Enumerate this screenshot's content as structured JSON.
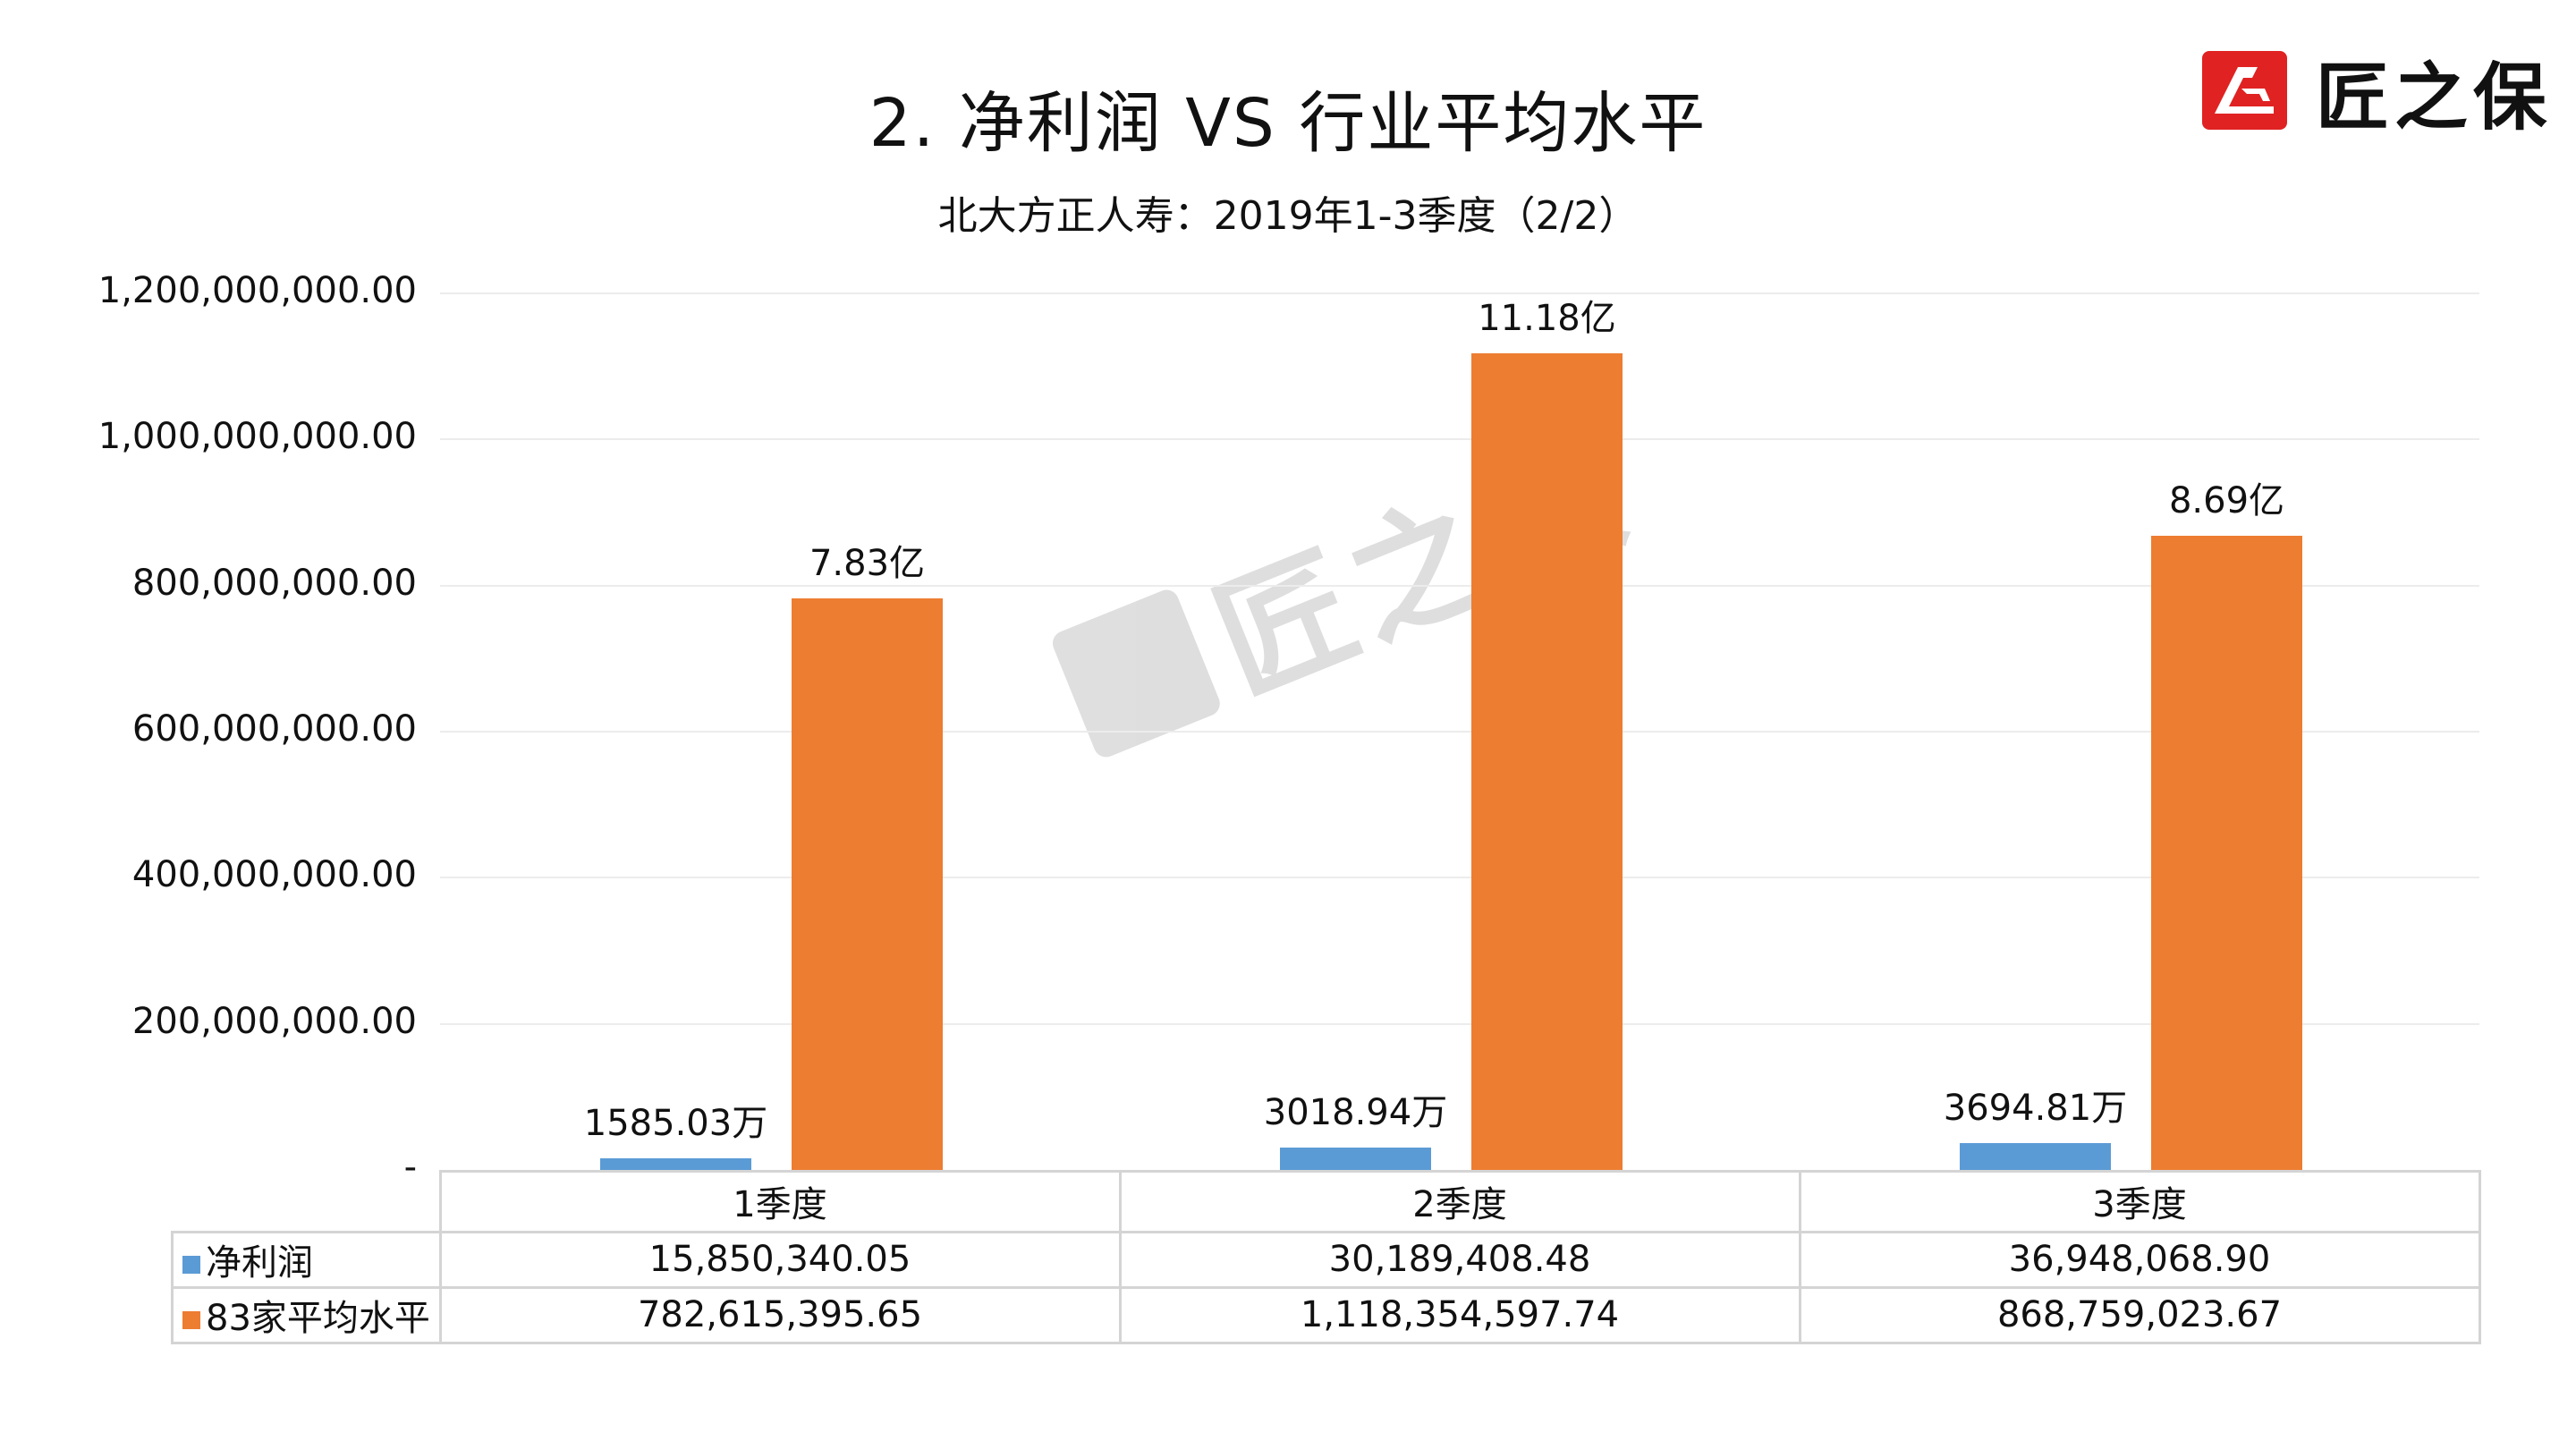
{
  "header": {
    "title": "2. 净利润  VS  行业平均水平",
    "subtitle": "北大方正人寿：2019年1-3季度（2/2）"
  },
  "logo": {
    "icon": "jiangzhibao-logo-icon",
    "text": "匠之保",
    "color": "#e02222"
  },
  "watermark": {
    "icon": "jiangzhibao-logo-icon",
    "text": "匠之保"
  },
  "colors": {
    "net_profit": "#5b9bd5",
    "industry_avg": "#ed7d31"
  },
  "y_axis": {
    "ticks": [
      "1,200,000,000.00",
      "1,000,000,000.00",
      "800,000,000.00",
      "600,000,000.00",
      "400,000,000.00",
      "200,000,000.00",
      "-"
    ]
  },
  "data_labels": {
    "net_profit": [
      "1585.03万",
      "3018.94万",
      "3694.81万"
    ],
    "industry_avg": [
      "7.83亿",
      "11.18亿",
      "8.69亿"
    ]
  },
  "table": {
    "columns": [
      "1季度",
      "2季度",
      "3季度"
    ],
    "rows": [
      {
        "label": "净利润",
        "values": [
          "15,850,340.05",
          "30,189,408.48",
          "36,948,068.90"
        ]
      },
      {
        "label": "83家平均水平",
        "values": [
          "782,615,395.65",
          "1,118,354,597.74",
          "868,759,023.67"
        ]
      }
    ]
  },
  "chart_data": {
    "type": "bar",
    "title": "2. 净利润 VS 行业平均水平",
    "subtitle": "北大方正人寿：2019年1-3季度（2/2）",
    "categories": [
      "1季度",
      "2季度",
      "3季度"
    ],
    "series": [
      {
        "name": "净利润",
        "color": "#5b9bd5",
        "values": [
          15850340.05,
          30189408.48,
          36948068.9
        ],
        "labels": [
          "1585.03万",
          "3018.94万",
          "3694.81万"
        ]
      },
      {
        "name": "83家平均水平",
        "color": "#ed7d31",
        "values": [
          782615395.65,
          1118354597.74,
          868759023.67
        ],
        "labels": [
          "7.83亿",
          "11.18亿",
          "8.69亿"
        ]
      }
    ],
    "xlabel": "",
    "ylabel": "",
    "ylim": [
      0,
      1200000000
    ],
    "yticks": [
      0,
      200000000,
      400000000,
      600000000,
      800000000,
      1000000000,
      1200000000
    ],
    "grid": true,
    "legend_position": "data-table"
  }
}
